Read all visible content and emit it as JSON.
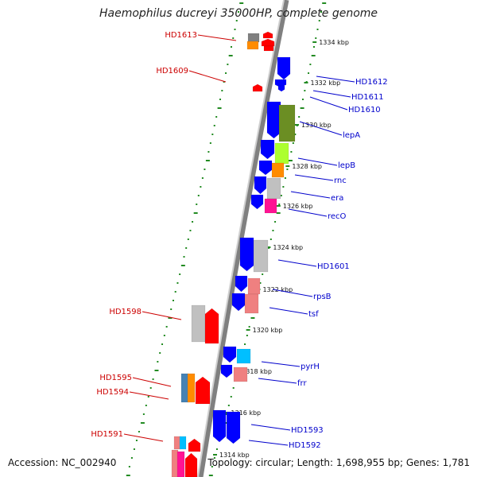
{
  "title": "Haemophilus ducreyi 35000HP, complete genome",
  "accession": "Accession: NC_002940",
  "summary": "Topology: circular; Length: 1,698,955 bp; Genes: 1,781",
  "colors": {
    "forward_gene": "#0000ff",
    "reverse_gene": "#ff0000",
    "label_left": "#cc0000",
    "label_right": "#0000cc",
    "backbone": "#808080",
    "tick": "#228b22",
    "ruler_text": "#111111",
    "cog_green": "#6b8e23",
    "cog_lime": "#adff2f",
    "cog_orange": "#ff8c00",
    "cog_grey": "#c0c0c0",
    "cog_magenta": "#ff1493",
    "cog_pink": "#ef8080",
    "cog_cyan": "#00bfff",
    "cog_steel": "#4682b4",
    "cog_darkgrey": "#808080"
  },
  "ruler_labels": [
    "1334 kbp",
    "1332 kbp",
    "1330 kbp",
    "1328 kbp",
    "1326 kbp",
    "1324 kbp",
    "1322 kbp",
    "1320 kbp",
    "1318 kbp",
    "1316 kbp",
    "1314 kbp"
  ],
  "left_labels": [
    "HD1613",
    "HD1609",
    "HD1598",
    "HD1595",
    "HD1594",
    "HD1591"
  ],
  "right_labels": [
    "HD1612",
    "HD1611",
    "HD1610",
    "lepA",
    "lepB",
    "rnc",
    "era",
    "recO",
    "HD1601",
    "rpsB",
    "tsf",
    "pyrH",
    "frr",
    "HD1593",
    "HD1592"
  ]
}
